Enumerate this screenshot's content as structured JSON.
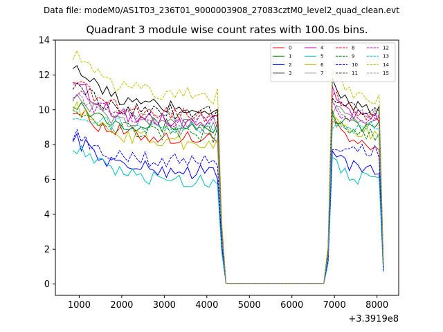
{
  "suptitle": "Data file: modeM0/AS1T03_236T01_9000003908_27083cztM0_level2_quad_clean.evt",
  "chart_data": {
    "type": "line",
    "title": "Quadrant 3 module wise count rates with 100.0s bins.",
    "xlabel": "",
    "ylabel": "",
    "x_offset_label": "+3.3919e8",
    "xlim": [
      440,
      8510
    ],
    "ylim": [
      -0.65,
      14.0
    ],
    "xticks": [
      1000,
      2000,
      3000,
      4000,
      5000,
      6000,
      7000,
      8000
    ],
    "yticks": [
      0,
      2,
      4,
      6,
      8,
      10,
      12,
      14
    ],
    "legend_position": "top-right",
    "x_segments": [
      {
        "start": 850,
        "end": 4350,
        "step": 100
      },
      {
        "start": 4450,
        "end": 4550,
        "step": 100
      },
      {
        "start": 6750,
        "end": 8150,
        "step": 100
      }
    ],
    "series": [
      {
        "name": "0",
        "color": "#ff0000",
        "dash": false,
        "base": 8.3,
        "start": 10.2,
        "end": 7.6
      },
      {
        "name": "1",
        "color": "#008000",
        "dash": false,
        "base": 9.0,
        "start": 10.6,
        "end": 8.9
      },
      {
        "name": "2",
        "color": "#0000ff",
        "dash": false,
        "base": 6.4,
        "start": 8.6,
        "end": 6.3
      },
      {
        "name": "3",
        "color": "#000000",
        "dash": false,
        "base": 10.0,
        "start": 12.8,
        "end": 9.8
      },
      {
        "name": "4",
        "color": "#bf00bf",
        "dash": false,
        "base": 9.2,
        "start": 12.0,
        "end": 9.3
      },
      {
        "name": "5",
        "color": "#00bfbf",
        "dash": false,
        "base": 5.9,
        "start": 8.1,
        "end": 5.8
      },
      {
        "name": "6",
        "color": "#bfbf00",
        "dash": false,
        "base": 8.1,
        "start": 10.4,
        "end": 8.6
      },
      {
        "name": "7",
        "color": "#808080",
        "dash": false,
        "base": 9.0,
        "start": 11.0,
        "end": 9.4
      },
      {
        "name": "8",
        "color": "#ff0000",
        "dash": true,
        "base": 9.7,
        "start": 11.9,
        "end": 9.6
      },
      {
        "name": "9",
        "color": "#008000",
        "dash": true,
        "base": 8.6,
        "start": 10.4,
        "end": 8.5
      },
      {
        "name": "10",
        "color": "#0000ff",
        "dash": true,
        "base": 7.0,
        "start": 8.7,
        "end": 7.6
      },
      {
        "name": "11",
        "color": "#000000",
        "dash": true,
        "base": 9.8,
        "start": 11.6,
        "end": 9.9
      },
      {
        "name": "12",
        "color": "#bf00bf",
        "dash": true,
        "base": 9.3,
        "start": 11.1,
        "end": 9.3
      },
      {
        "name": "13",
        "color": "#00bfbf",
        "dash": true,
        "base": 8.9,
        "start": 9.9,
        "end": 9.0
      },
      {
        "name": "14",
        "color": "#bfbf00",
        "dash": true,
        "base": 10.8,
        "start": 13.3,
        "end": 10.5
      },
      {
        "name": "15",
        "color": "#808080",
        "dash": true,
        "base": 9.4,
        "start": 10.9,
        "end": 9.6
      }
    ]
  }
}
